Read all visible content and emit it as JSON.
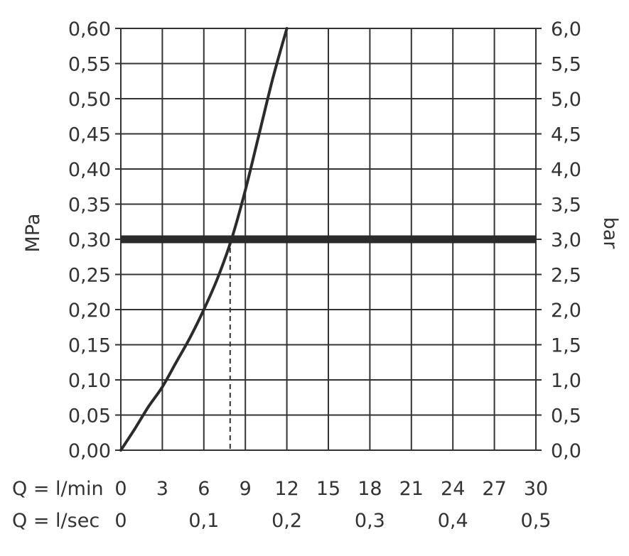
{
  "chart_data": {
    "type": "line",
    "series": [
      {
        "x": [
          0,
          1,
          2,
          3,
          4,
          5,
          6,
          7,
          8,
          9,
          10,
          11,
          12
        ],
        "y": [
          0.0,
          0.03,
          0.062,
          0.09,
          0.125,
          0.16,
          0.2,
          0.245,
          0.3,
          0.37,
          0.45,
          0.53,
          0.6
        ]
      }
    ],
    "reference_line": {
      "y": 0.3,
      "intersection_x": 7.9
    },
    "left_axis": {
      "label": "MPa",
      "ylim": [
        0,
        0.6
      ],
      "ticks": [
        "0,00",
        "0,05",
        "0,10",
        "0,15",
        "0,20",
        "0,25",
        "0,30",
        "0,35",
        "0,40",
        "0,45",
        "0,50",
        "0,55",
        "0,60"
      ]
    },
    "right_axis": {
      "label": "bar",
      "ticks": [
        "0,0",
        "0,5",
        "1,0",
        "1,5",
        "2,0",
        "2,5",
        "3,0",
        "3,5",
        "4,0",
        "4,5",
        "5,0",
        "5,5",
        "6,0"
      ]
    },
    "x_axis": {
      "xlim": [
        0,
        30
      ],
      "label_lmin": "Q = l/min",
      "ticks_lmin": [
        "0",
        "3",
        "6",
        "9",
        "12",
        "15",
        "18",
        "21",
        "24",
        "27",
        "30"
      ],
      "label_lsec": "Q = l/sec",
      "ticks_lsec": [
        "0",
        "0,1",
        "0,2",
        "0,3",
        "0,4",
        "0,5"
      ]
    },
    "grid": true,
    "colors": {
      "curve": "#2b2b2b",
      "grid": "#333333",
      "text": "#333333"
    }
  }
}
